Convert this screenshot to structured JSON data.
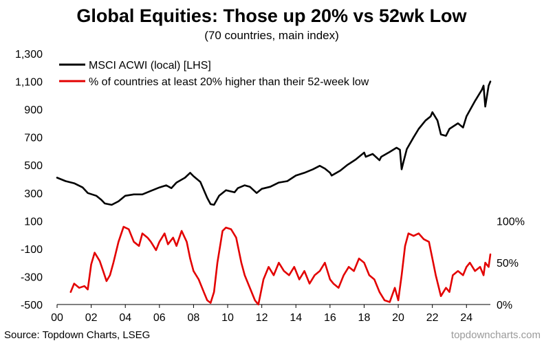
{
  "chart_data": {
    "type": "line",
    "title": "Global Equities: Those up 20% vs 52wk Low",
    "subtitle": "(70 countries, main index)",
    "x_axis": {
      "range": [
        2000,
        2025.4
      ],
      "ticks": [
        2000,
        2002,
        2004,
        2006,
        2008,
        2010,
        2012,
        2014,
        2016,
        2018,
        2020,
        2022,
        2024
      ],
      "tick_labels": [
        "00",
        "02",
        "04",
        "06",
        "08",
        "10",
        "12",
        "14",
        "16",
        "18",
        "20",
        "22",
        "24"
      ]
    },
    "y_left": {
      "range": [
        -500,
        1300
      ],
      "ticks": [
        -500,
        -300,
        -100,
        100,
        300,
        500,
        700,
        900,
        1100,
        1300
      ],
      "tick_labels": [
        "-500",
        "-300",
        "-100",
        "100",
        "300",
        "500",
        "700",
        "900",
        "1,100",
        "1,300"
      ]
    },
    "y_right": {
      "range": [
        0,
        100
      ],
      "ticks": [
        0,
        50,
        100
      ],
      "tick_labels": [
        "0%",
        "50%",
        "100%"
      ],
      "display_band_left_units": [
        -500,
        100
      ]
    },
    "grid": false,
    "legend_position": "top-left",
    "series": [
      {
        "name": "MSCI ACWI (local) [LHS]",
        "axis": "left",
        "color": "#000000",
        "x": [
          2000.0,
          2000.5,
          2001.0,
          2001.5,
          2001.8,
          2002.3,
          2002.6,
          2002.8,
          2003.2,
          2003.6,
          2004.0,
          2004.5,
          2005.0,
          2005.5,
          2006.0,
          2006.4,
          2006.7,
          2007.0,
          2007.5,
          2007.8,
          2008.0,
          2008.4,
          2008.8,
          2009.0,
          2009.2,
          2009.5,
          2009.9,
          2010.4,
          2010.6,
          2011.0,
          2011.3,
          2011.7,
          2012.0,
          2012.5,
          2013.0,
          2013.5,
          2014.0,
          2014.5,
          2015.0,
          2015.4,
          2015.7,
          2016.0,
          2016.1,
          2016.6,
          2017.0,
          2017.5,
          2018.0,
          2018.1,
          2018.5,
          2018.9,
          2019.0,
          2019.5,
          2019.9,
          2020.1,
          2020.2,
          2020.3,
          2020.5,
          2020.9,
          2021.2,
          2021.6,
          2021.9,
          2022.0,
          2022.3,
          2022.5,
          2022.8,
          2023.0,
          2023.5,
          2023.8,
          2024.0,
          2024.5,
          2024.9,
          2025.0,
          2025.1,
          2025.3,
          2025.4
        ],
        "y": [
          410,
          385,
          370,
          340,
          300,
          280,
          250,
          225,
          215,
          240,
          280,
          290,
          290,
          315,
          340,
          355,
          335,
          375,
          410,
          445,
          420,
          380,
          265,
          220,
          215,
          280,
          320,
          305,
          335,
          355,
          345,
          300,
          330,
          345,
          375,
          385,
          425,
          445,
          470,
          495,
          475,
          445,
          425,
          460,
          500,
          540,
          590,
          560,
          580,
          535,
          560,
          595,
          625,
          610,
          470,
          520,
          615,
          700,
          760,
          820,
          850,
          880,
          820,
          720,
          710,
          760,
          800,
          770,
          850,
          960,
          1040,
          1070,
          920,
          1070,
          1100
        ]
      },
      {
        "name": "% of countries at least 20% higher than their 52-week low",
        "axis": "right",
        "color": "#e30000",
        "x": [
          2000.8,
          2001.0,
          2001.3,
          2001.6,
          2001.8,
          2002.0,
          2002.2,
          2002.5,
          2002.7,
          2002.9,
          2003.1,
          2003.3,
          2003.6,
          2003.9,
          2004.2,
          2004.5,
          2004.8,
          2005.0,
          2005.3,
          2005.5,
          2005.8,
          2006.0,
          2006.3,
          2006.5,
          2006.8,
          2007.0,
          2007.3,
          2007.6,
          2007.8,
          2008.0,
          2008.3,
          2008.6,
          2008.8,
          2009.0,
          2009.2,
          2009.4,
          2009.7,
          2009.9,
          2010.2,
          2010.5,
          2010.8,
          2011.0,
          2011.3,
          2011.6,
          2011.8,
          2012.1,
          2012.4,
          2012.7,
          2013.0,
          2013.3,
          2013.6,
          2013.9,
          2014.2,
          2014.5,
          2014.8,
          2015.1,
          2015.4,
          2015.7,
          2016.0,
          2016.2,
          2016.5,
          2016.8,
          2017.1,
          2017.4,
          2017.7,
          2018.0,
          2018.3,
          2018.6,
          2018.9,
          2019.2,
          2019.5,
          2019.8,
          2020.0,
          2020.2,
          2020.4,
          2020.6,
          2020.9,
          2021.2,
          2021.5,
          2021.8,
          2022.0,
          2022.2,
          2022.5,
          2022.8,
          2023.0,
          2023.2,
          2023.5,
          2023.8,
          2024.0,
          2024.2,
          2024.5,
          2024.8,
          2025.0,
          2025.1,
          2025.3,
          2025.4
        ],
        "y": [
          15,
          25,
          20,
          22,
          18,
          48,
          62,
          52,
          40,
          28,
          35,
          50,
          75,
          93,
          90,
          75,
          70,
          85,
          80,
          75,
          65,
          75,
          85,
          72,
          80,
          70,
          88,
          75,
          55,
          40,
          30,
          15,
          5,
          2,
          15,
          50,
          88,
          92,
          90,
          80,
          50,
          35,
          20,
          5,
          0,
          30,
          45,
          35,
          50,
          40,
          35,
          45,
          30,
          40,
          25,
          35,
          40,
          50,
          30,
          25,
          20,
          35,
          45,
          40,
          55,
          50,
          35,
          30,
          15,
          5,
          3,
          20,
          5,
          35,
          70,
          85,
          82,
          85,
          78,
          75,
          55,
          35,
          10,
          20,
          15,
          35,
          40,
          35,
          45,
          50,
          40,
          45,
          35,
          50,
          45,
          60
        ]
      }
    ]
  },
  "footer": {
    "source": "Source: Topdown Charts, LSEG",
    "watermark": "topdowncharts.com"
  }
}
